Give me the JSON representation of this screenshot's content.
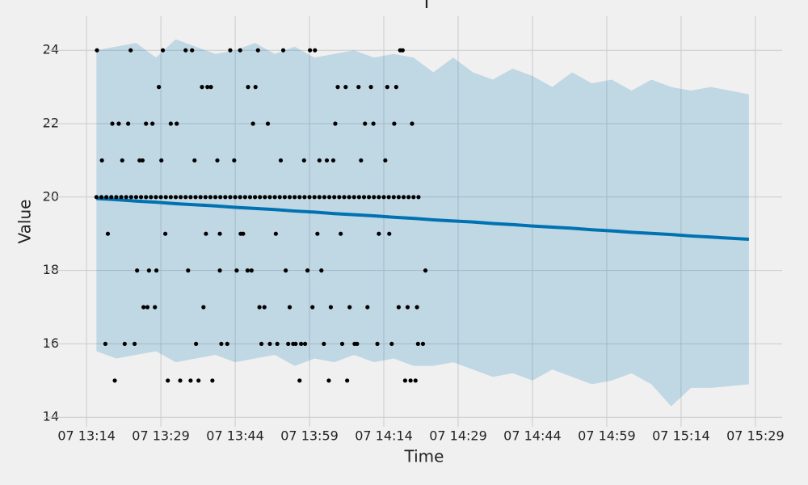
{
  "chart_data": {
    "type": "forecast",
    "title": "T",
    "x_label": "Time",
    "y_label": "Value",
    "xlim": [
      5.5,
      154.4
    ],
    "ylim": [
      13.74,
      24.93
    ],
    "grid": true,
    "xticks": [
      {
        "value": 14,
        "label": "07 13:14"
      },
      {
        "value": 29,
        "label": "07 13:29"
      },
      {
        "value": 44,
        "label": "07 13:44"
      },
      {
        "value": 59,
        "label": "07 13:59"
      },
      {
        "value": 74,
        "label": "07 14:14"
      },
      {
        "value": 89,
        "label": "07 14:29"
      },
      {
        "value": 104,
        "label": "07 14:44"
      },
      {
        "value": 119,
        "label": "07 14:59"
      },
      {
        "value": 134,
        "label": "07 15:14"
      },
      {
        "value": 149,
        "label": "07 15:29"
      }
    ],
    "yticks": [
      14,
      16,
      18,
      20,
      22,
      24
    ],
    "forecast": {
      "color": "#0072b2",
      "x": [
        16,
        20,
        24,
        28,
        32,
        36,
        40,
        44,
        48,
        52,
        56,
        60,
        64,
        68,
        72,
        76,
        80,
        84,
        88,
        92,
        96,
        100,
        104,
        108,
        112,
        116,
        120,
        124,
        128,
        132,
        136,
        140,
        147.7
      ],
      "values": [
        19.96,
        19.93,
        19.89,
        19.86,
        19.82,
        19.79,
        19.76,
        19.72,
        19.69,
        19.66,
        19.62,
        19.59,
        19.55,
        19.52,
        19.49,
        19.45,
        19.42,
        19.38,
        19.35,
        19.32,
        19.28,
        19.25,
        19.21,
        19.18,
        19.15,
        19.11,
        19.08,
        19.04,
        19.01,
        18.98,
        18.94,
        18.91,
        18.85
      ],
      "upper": [
        24.0,
        24.1,
        24.2,
        23.8,
        24.3,
        24.1,
        23.9,
        24.0,
        24.2,
        23.9,
        24.1,
        23.8,
        23.9,
        24.0,
        23.8,
        23.9,
        23.8,
        23.4,
        23.8,
        23.4,
        23.2,
        23.5,
        23.3,
        23.0,
        23.4,
        23.1,
        23.2,
        22.9,
        23.2,
        23.0,
        22.9,
        23.0,
        22.8
      ],
      "lower": [
        15.8,
        15.6,
        15.7,
        15.8,
        15.5,
        15.6,
        15.7,
        15.5,
        15.6,
        15.7,
        15.4,
        15.6,
        15.5,
        15.7,
        15.5,
        15.6,
        15.4,
        15.4,
        15.5,
        15.3,
        15.1,
        15.2,
        15.0,
        15.3,
        15.1,
        14.9,
        15.0,
        15.2,
        14.9,
        14.3,
        14.8,
        14.8,
        14.9
      ]
    },
    "observed": {
      "color": "#000000",
      "x": [
        16,
        17,
        18,
        19,
        20,
        21,
        22,
        23,
        24,
        25,
        26,
        27,
        28,
        29,
        30,
        31,
        32,
        33,
        34,
        35,
        36,
        37,
        38,
        39,
        40,
        41,
        42,
        43,
        44,
        45,
        46,
        47,
        48,
        49,
        50,
        51,
        52,
        53,
        54,
        55,
        56,
        57,
        58,
        59,
        60,
        61,
        62,
        63,
        64,
        65,
        66,
        67,
        68,
        69,
        70,
        71,
        72,
        73,
        74,
        75,
        76,
        77,
        78,
        79,
        80,
        81,
        16.1,
        22.9,
        29.4,
        34,
        35.3,
        43,
        45,
        48.6,
        53.7,
        59.1,
        60.1,
        77.3,
        77.8,
        28.6,
        37.3,
        38.4,
        39.1,
        46.6,
        48.1,
        64.7,
        66.3,
        68.9,
        71.4,
        74.7,
        76.5,
        19.2,
        20.5,
        22.4,
        26,
        27.3,
        31,
        32.2,
        47.6,
        50.6,
        64.2,
        70.2,
        71.9,
        76.1,
        79.7,
        17.1,
        21.2,
        24.7,
        25.3,
        29.1,
        35.8,
        40.4,
        43.8,
        53.2,
        57.9,
        61,
        62.5,
        63.8,
        69.4,
        74.3,
        18.3,
        29.9,
        38.1,
        40.9,
        45.1,
        45.6,
        52.2,
        60.6,
        65.3,
        73,
        75.1,
        24.2,
        26.6,
        28.1,
        34.5,
        40.9,
        44.3,
        46.5,
        47.3,
        54.2,
        58.6,
        61.4,
        82.4,
        25.5,
        26.3,
        27.8,
        37.6,
        48.9,
        49.9,
        55,
        59.6,
        63.3,
        67.1,
        70.7,
        77,
        78.8,
        80.7,
        17.8,
        21.7,
        23.7,
        36.1,
        41.2,
        42.4,
        49.3,
        51,
        52.5,
        54.7,
        55.7,
        56.2,
        57.3,
        58.1,
        61.9,
        65.6,
        68.1,
        68.6,
        72.7,
        75.6,
        80.9,
        81.9,
        19.7,
        30.4,
        32.9,
        35,
        36.6,
        39.4,
        57,
        62.9,
        66.6,
        78.3,
        79.4,
        80.4
      ],
      "values": [
        20,
        20,
        20,
        20,
        20,
        20,
        20,
        20,
        20,
        20,
        20,
        20,
        20,
        20,
        20,
        20,
        20,
        20,
        20,
        20,
        20,
        20,
        20,
        20,
        20,
        20,
        20,
        20,
        20,
        20,
        20,
        20,
        20,
        20,
        20,
        20,
        20,
        20,
        20,
        20,
        20,
        20,
        20,
        20,
        20,
        20,
        20,
        20,
        20,
        20,
        20,
        20,
        20,
        20,
        20,
        20,
        20,
        20,
        20,
        20,
        20,
        20,
        20,
        20,
        20,
        20,
        24,
        24,
        24,
        24,
        24,
        24,
        24,
        24,
        24,
        24,
        24,
        24,
        24,
        23,
        23,
        23,
        23,
        23,
        23,
        23,
        23,
        23,
        23,
        23,
        23,
        22,
        22,
        22,
        22,
        22,
        22,
        22,
        22,
        22,
        22,
        22,
        22,
        22,
        22,
        21,
        21,
        21,
        21,
        21,
        21,
        21,
        21,
        21,
        21,
        21,
        21,
        21,
        21,
        21,
        19,
        19,
        19,
        19,
        19,
        19,
        19,
        19,
        19,
        19,
        19,
        18,
        18,
        18,
        18,
        18,
        18,
        18,
        18,
        18,
        18,
        18,
        18,
        17,
        17,
        17,
        17,
        17,
        17,
        17,
        17,
        17,
        17,
        17,
        17,
        17,
        17,
        16,
        16,
        16,
        16,
        16,
        16,
        16,
        16,
        16,
        16,
        16,
        16,
        16,
        16,
        16,
        16,
        16,
        16,
        16,
        16,
        16,
        16,
        15,
        15,
        15,
        15,
        15,
        15,
        15,
        15,
        15,
        15,
        15,
        15
      ]
    }
  }
}
